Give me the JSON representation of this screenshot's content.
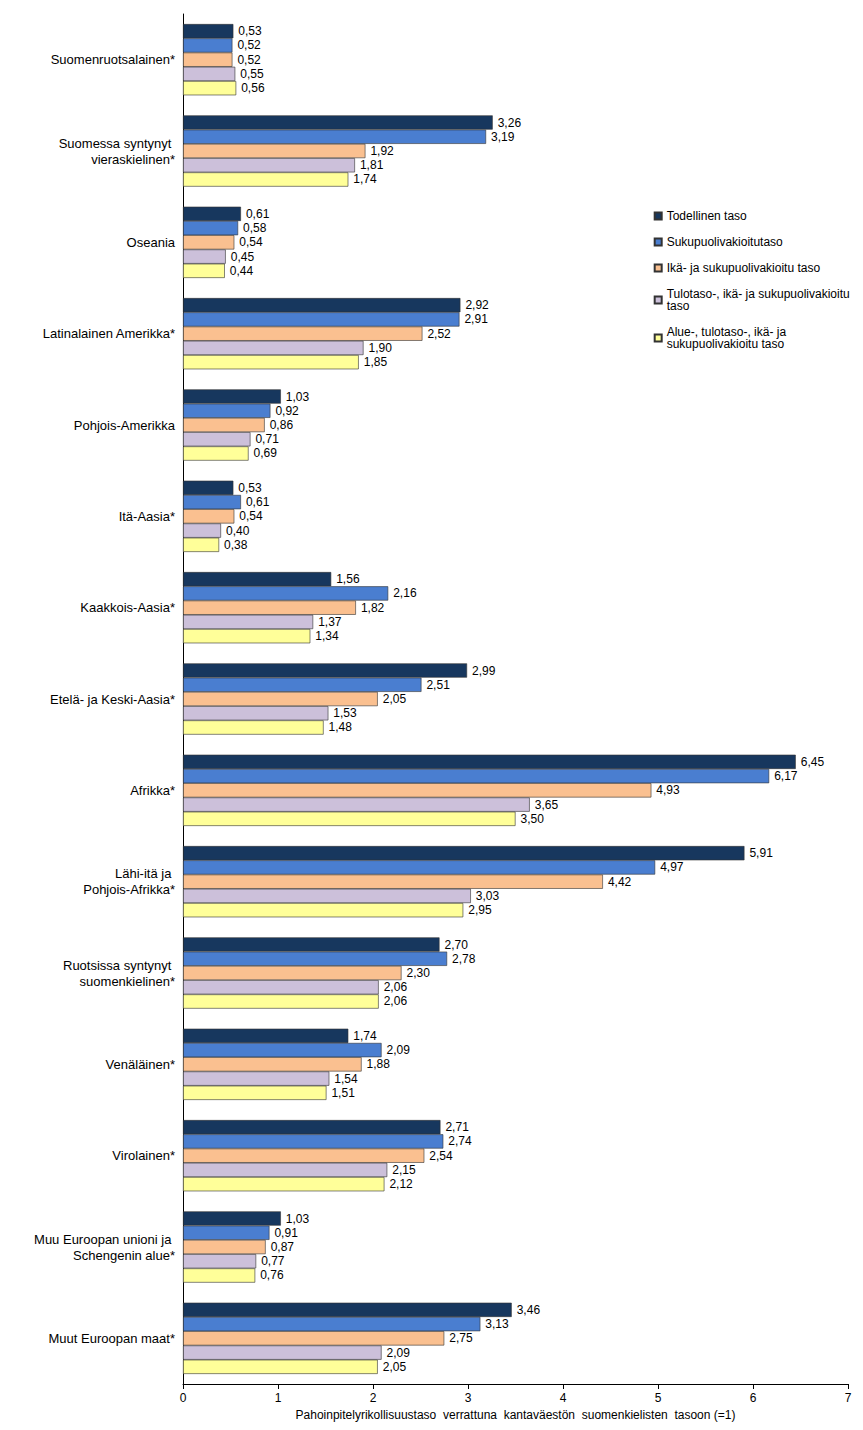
{
  "chart_data": {
    "type": "bar",
    "orientation": "horizontal",
    "data_labels": true,
    "grid": false,
    "legend": "upper right",
    "x_label": "Pahoinpitelyrikollisuustaso  verrattuna  kantaväestön  suomenkielisten  tasoon (=1)",
    "xlim": [
      0,
      7
    ],
    "xticks": [
      0,
      1,
      2,
      3,
      4,
      5,
      6,
      7
    ],
    "categories": [
      "Suomenruotsalainen*",
      "Suomessa syntynyt vieraskielinen*",
      "Oseania",
      "Latinalainen Amerikka*",
      "Pohjois-Amerikka",
      "Itä-Aasia*",
      "Kaakkois-Aasia*",
      "Etelä- ja Keski-Aasia*",
      "Afrikka*",
      "Lähi-itä ja Pohjois-Afrikka*",
      "Ruotsissa syntynyt suomenkielinen*",
      "Venäläinen*",
      "Virolainen*",
      "Muu Euroopan unioni ja Schengenin alue*",
      "Muut Euroopan maat*"
    ],
    "series": [
      {
        "name": "Todellinen taso",
        "color": "#17375e",
        "values": [
          0.53,
          3.26,
          0.61,
          2.92,
          1.03,
          0.53,
          1.56,
          2.99,
          6.45,
          5.91,
          2.7,
          1.74,
          2.71,
          1.03,
          3.46
        ],
        "value_labels": [
          "0,53",
          "3,26",
          "0,61",
          "2,92",
          "1,03",
          "0,53",
          "1,56",
          "2,99",
          "6,45",
          "5,91",
          "2,70",
          "1,74",
          "2,71",
          "1,03",
          "3,46"
        ]
      },
      {
        "name": "Sukupuolivakioitutaso",
        "color": "#4a7ed0",
        "values": [
          0.52,
          3.19,
          0.58,
          2.91,
          0.92,
          0.61,
          2.16,
          2.51,
          6.17,
          4.97,
          2.78,
          2.09,
          2.74,
          0.91,
          3.13
        ],
        "value_labels": [
          "0,52",
          "3,19",
          "0,58",
          "2,91",
          "0,92",
          "0,61",
          "2,16",
          "2,51",
          "6,17",
          "4,97",
          "2,78",
          "2,09",
          "2,74",
          "0,91",
          "3,13"
        ]
      },
      {
        "name": "Ikä- ja sukupuolivakioitu taso",
        "color": "#fac090",
        "values": [
          0.52,
          1.92,
          0.54,
          2.52,
          0.86,
          0.54,
          1.82,
          2.05,
          4.93,
          4.42,
          2.3,
          1.88,
          2.54,
          0.87,
          2.75
        ],
        "value_labels": [
          "0,52",
          "1,92",
          "0,54",
          "2,52",
          "0,86",
          "0,54",
          "1,82",
          "2,05",
          "4,93",
          "4,42",
          "2,30",
          "1,88",
          "2,54",
          "0,87",
          "2,75"
        ]
      },
      {
        "name": "Tulotaso-, ikä- ja sukupuolivakioitu taso",
        "color": "#ccc0da",
        "values": [
          0.55,
          1.81,
          0.45,
          1.9,
          0.71,
          0.4,
          1.37,
          1.53,
          3.65,
          3.03,
          2.06,
          1.54,
          2.15,
          0.77,
          2.09
        ],
        "value_labels": [
          "0,55",
          "1,81",
          "0,45",
          "1,90",
          "0,71",
          "0,40",
          "1,37",
          "1,53",
          "3,65",
          "3,03",
          "2,06",
          "1,54",
          "2,15",
          "0,77",
          "2,09"
        ]
      },
      {
        "name": "Alue-, tulotaso-, ikä- ja sukupuolivakioitu taso",
        "color": "#ffff99",
        "values": [
          0.56,
          1.74,
          0.44,
          1.85,
          0.69,
          0.38,
          1.34,
          1.48,
          3.5,
          2.95,
          2.06,
          1.51,
          2.12,
          0.76,
          2.05
        ],
        "value_labels": [
          "0,56",
          "1,74",
          "0,44",
          "1,85",
          "0,69",
          "0,38",
          "1,34",
          "1,48",
          "3,50",
          "2,95",
          "2,06",
          "1,51",
          "2,12",
          "0,76",
          "2,05"
        ]
      }
    ]
  }
}
